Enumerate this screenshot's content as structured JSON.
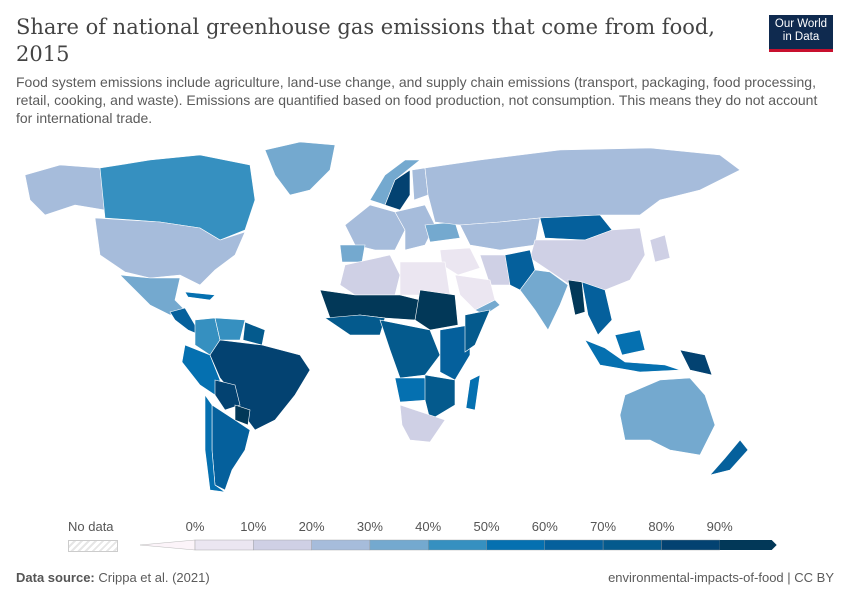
{
  "header": {
    "title": "Share of national greenhouse gas emissions that come from food, 2015",
    "subtitle": "Food system emissions include agriculture, land-use change, and supply chain emissions (transport, packaging, food processing, retail, cooking, and waste). Emissions are quantified based on food production, not consumption. This means they do not account for international trade.",
    "logo_line1": "Our World",
    "logo_line2": "in Data"
  },
  "legend": {
    "no_data": "No data",
    "ticks": [
      "0%",
      "10%",
      "20%",
      "30%",
      "40%",
      "50%",
      "60%",
      "70%",
      "80%",
      "90%"
    ],
    "colors": [
      "#fcf4f9",
      "#ebe6f1",
      "#cfd0e5",
      "#a6bcdb",
      "#74a9cf",
      "#3690c0",
      "#0570b0",
      "#05609c",
      "#045a8d",
      "#034271",
      "#023858"
    ]
  },
  "countries": {
    "Greenland": 4,
    "Canada": 5,
    "Alaska": 3,
    "United States": 3,
    "Mexico": 4,
    "Central America": 7,
    "Cuba": 6,
    "Colombia": 5,
    "Venezuela": 5,
    "Guianas": 8,
    "Brazil": 9,
    "Peru": 6,
    "Bolivia": 9,
    "Argentina": 7,
    "Chile": 6,
    "Paraguay": 10,
    "Western Europe": 3,
    "Iberia": 4,
    "Norway": 4,
    "Sweden": 9,
    "Finland": 3,
    "Eastern Europe": 3,
    "Ukraine": 4,
    "Russia": 3,
    "Kazakhstan": 3,
    "Mongolia": 7,
    "China": 2,
    "Middle East": 1,
    "Saudi Arabia": 1,
    "Iran": 2,
    "Pakistan": 7,
    "India": 4,
    "Myanmar": 10,
    "Southeast Asia": 7,
    "Indonesia": 6,
    "Papua New Guinea": 9,
    "Japan": 2,
    "Australia": 4,
    "New Zealand": 7,
    "North Africa": 2,
    "Libya": 1,
    "Sahel": 10,
    "Sudan": 10,
    "West Africa": 8,
    "Central Africa": 8,
    "East Africa": 7,
    "Somalia": 8,
    "Angola": 6,
    "Southern Africa": 8,
    "South Africa": 2,
    "Madagascar": 6,
    "Arabia South": 4
  },
  "footer": {
    "source_label": "Data source:",
    "source": "Crippa et al. (2021)",
    "right": "environmental-impacts-of-food | CC BY"
  }
}
